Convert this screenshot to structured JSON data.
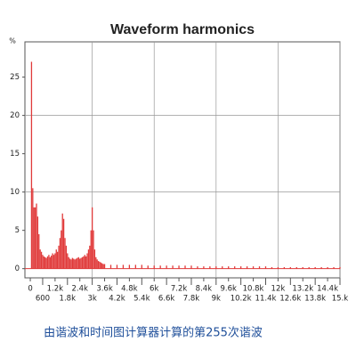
{
  "chart_data": {
    "type": "stem",
    "title": "Waveform harmonics",
    "y_label": "%",
    "x": [
      60,
      120,
      180,
      240,
      300,
      360,
      420,
      480,
      540,
      600,
      660,
      720,
      780,
      840,
      900,
      960,
      1020,
      1080,
      1140,
      1200,
      1260,
      1320,
      1380,
      1440,
      1500,
      1560,
      1620,
      1680,
      1740,
      1800,
      1860,
      1920,
      1980,
      2040,
      2100,
      2160,
      2220,
      2280,
      2340,
      2400,
      2460,
      2520,
      2580,
      2640,
      2700,
      2760,
      2820,
      2880,
      2940,
      3000,
      3060,
      3120,
      3180,
      3240,
      3300,
      3360,
      3420,
      3480,
      3540,
      3600,
      3900,
      4200,
      4500,
      4800,
      5100,
      5400,
      5700,
      6000,
      6300,
      6600,
      6900,
      7200,
      7500,
      7800,
      8100,
      8400,
      8700,
      9000,
      9300,
      9600,
      9900,
      10200,
      10500,
      10800,
      11100,
      11400,
      11700,
      12000,
      12300,
      12600,
      12900,
      13200,
      13500,
      13800,
      14100,
      14400,
      14700,
      15000
    ],
    "values": [
      27,
      10.5,
      8,
      8,
      8.5,
      6.8,
      4.5,
      2.5,
      2.2,
      1.8,
      1.6,
      1.5,
      1.4,
      1.6,
      1.8,
      1.5,
      1.7,
      2,
      1.8,
      2,
      2.5,
      2.2,
      3,
      4,
      5,
      7.2,
      6.5,
      4,
      3,
      2,
      1.5,
      1.3,
      1.2,
      1.4,
      1.3,
      1.2,
      1.3,
      1.4,
      1.5,
      1.3,
      1.4,
      1.5,
      1.6,
      1.8,
      1.6,
      2,
      2.5,
      3,
      5,
      8,
      5,
      2.5,
      1.5,
      1.2,
      1,
      0.9,
      0.8,
      0.7,
      0.6,
      0.6,
      0.5,
      0.5,
      0.5,
      0.5,
      0.5,
      0.5,
      0.4,
      0.4,
      0.4,
      0.4,
      0.4,
      0.4,
      0.4,
      0.4,
      0.3,
      0.3,
      0.3,
      0.3,
      0.3,
      0.3,
      0.3,
      0.3,
      0.3,
      0.3,
      0.3,
      0.3,
      0.2,
      0.2,
      0.2,
      0.2,
      0.2,
      0.2,
      0.2,
      0.2,
      0.2,
      0.2,
      0.2,
      0.2
    ],
    "color": "#e03a3a",
    "xlim": [
      -260,
      15000
    ],
    "ylim": [
      -1.2,
      29.6
    ],
    "yticks": [
      0,
      5,
      10,
      15,
      20,
      25
    ],
    "xticks": [
      0,
      600,
      {
        "value": 1200,
        "label": "1.2k"
      },
      {
        "value": 1800,
        "label": "1.8k"
      },
      {
        "value": 2400,
        "label": "2.4k"
      },
      {
        "value": 3000,
        "label": "3k"
      },
      {
        "value": 3600,
        "label": "3.6k"
      },
      {
        "value": 4200,
        "label": "4.2k"
      },
      {
        "value": 4800,
        "label": "4.8k"
      },
      {
        "value": 5400,
        "label": "5.4k"
      },
      {
        "value": 6000,
        "label": "6k"
      },
      {
        "value": 6600,
        "label": "6.6k"
      },
      {
        "value": 7200,
        "label": "7.2k"
      },
      {
        "value": 7800,
        "label": "7.8k"
      },
      {
        "value": 8400,
        "label": "8.4k"
      },
      {
        "value": 9000,
        "label": "9k"
      },
      {
        "value": 9600,
        "label": "9.6k"
      },
      {
        "value": 10200,
        "label": "10.2k"
      },
      {
        "value": 10800,
        "label": "10.8k"
      },
      {
        "value": 11400,
        "label": "11.4k"
      },
      {
        "value": 12000,
        "label": "12k"
      },
      {
        "value": 12600,
        "label": "12.6k"
      },
      {
        "value": 13200,
        "label": "13.2k"
      },
      {
        "value": 13800,
        "label": "13.8k"
      },
      {
        "value": 14400,
        "label": "14.4k"
      },
      {
        "value": 15000,
        "label": "15.k"
      }
    ],
    "ygrid": [
      10,
      20
    ],
    "xgrid": [
      3000,
      6000,
      9000,
      12000,
      15000
    ],
    "caption": "由谐波和时间图计算器计算的第255次谐波"
  }
}
